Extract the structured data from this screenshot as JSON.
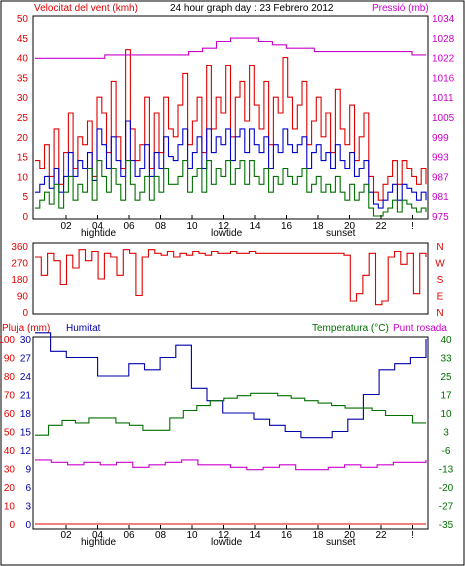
{
  "colors": {
    "wind": "#e00000",
    "wind_avg": "#0000cc",
    "wind_low": "#007000",
    "pressure": "#cc00cc",
    "direction": "#e00000",
    "rain": "#e00000",
    "humidity": "#0000aa",
    "temperature": "#007000",
    "dewpoint": "#cc00cc",
    "frame": "#000000"
  },
  "top": {
    "left_title": "Velocitat del vent (kmh)",
    "center_title": "24 hour graph day : 23 Febrero 2012",
    "right_title": "Pressió (mb)"
  },
  "middle": {
    "compass": [
      "N",
      "W",
      "S",
      "E",
      "N"
    ]
  },
  "bottom": {
    "rain_title": "Pluja (mm)",
    "humidity_title": "Humitat",
    "temp_title": "Temperatura (°C)",
    "dew_title": "Punt rosada"
  },
  "markers": {
    "hightide": "hightide",
    "lowtide": "lowtide",
    "sunset": "sunset"
  },
  "chart_data": [
    {
      "type": "line",
      "x_ticks": [
        "02",
        "04",
        "06",
        "08",
        "10",
        "12",
        "14",
        "16",
        "18",
        "20",
        "22",
        "!"
      ],
      "y_left_ticks": [
        "0",
        "5",
        "10",
        "15",
        "20",
        "25",
        "30",
        "35",
        "40",
        "45",
        "50"
      ],
      "y_left_range": [
        0,
        50
      ],
      "y_right_ticks": [
        "975",
        "981",
        "987",
        "993",
        "999",
        "1005",
        "1011",
        "1016",
        "1022",
        "1028",
        "1034"
      ],
      "y_right_range": [
        975,
        1034
      ],
      "series": [
        {
          "values": [
            14,
            12,
            18,
            10,
            22,
            8,
            16,
            26,
            12,
            20,
            18,
            24,
            10,
            30,
            26,
            16,
            34,
            20,
            12,
            42,
            22,
            14,
            18,
            30,
            12,
            26,
            16,
            30,
            22,
            20,
            28,
            36,
            18,
            24,
            30,
            16,
            38,
            22,
            30,
            26,
            38,
            20,
            30,
            34,
            24,
            38,
            28,
            22,
            34,
            18,
            30,
            26,
            40,
            30,
            22,
            28,
            34,
            18,
            24,
            30,
            20,
            26,
            16,
            32,
            22,
            18,
            28,
            14,
            20,
            26,
            10,
            6,
            4,
            8,
            10,
            14,
            8,
            14,
            12,
            10,
            8,
            12,
            8
          ]
        },
        {
          "values": [
            6,
            8,
            10,
            7,
            12,
            6,
            10,
            16,
            10,
            14,
            12,
            16,
            9,
            22,
            18,
            12,
            20,
            14,
            10,
            24,
            14,
            10,
            12,
            18,
            10,
            16,
            12,
            20,
            15,
            14,
            18,
            22,
            12,
            16,
            20,
            12,
            22,
            16,
            20,
            18,
            22,
            14,
            20,
            22,
            16,
            22,
            18,
            16,
            20,
            12,
            18,
            16,
            22,
            18,
            16,
            18,
            20,
            12,
            16,
            18,
            14,
            16,
            12,
            18,
            14,
            12,
            16,
            10,
            12,
            14,
            6,
            3,
            2,
            4,
            6,
            8,
            4,
            8,
            7,
            6,
            4,
            6,
            4
          ]
        },
        {
          "values": [
            2,
            4,
            6,
            3,
            8,
            2,
            6,
            10,
            4,
            8,
            6,
            12,
            4,
            14,
            10,
            6,
            12,
            8,
            4,
            14,
            8,
            4,
            6,
            10,
            4,
            10,
            6,
            12,
            8,
            8,
            10,
            14,
            6,
            10,
            12,
            6,
            14,
            8,
            12,
            10,
            14,
            8,
            12,
            14,
            8,
            14,
            10,
            8,
            12,
            6,
            10,
            8,
            12,
            10,
            8,
            10,
            12,
            6,
            8,
            10,
            6,
            8,
            6,
            10,
            6,
            4,
            8,
            4,
            6,
            8,
            2,
            0,
            0,
            1,
            2,
            4,
            1,
            4,
            3,
            2,
            1,
            2,
            1
          ]
        },
        {
          "name": "Pressió (mb)",
          "values": [
            1022,
            1022,
            1022,
            1022,
            1022,
            1023,
            1023,
            1023,
            1023,
            1023,
            1023,
            1024,
            1025,
            1027,
            1028,
            1028,
            1027,
            1026,
            1025,
            1025,
            1024,
            1024,
            1024,
            1024,
            1024,
            1024,
            1024,
            1023,
            1023
          ]
        }
      ]
    },
    {
      "type": "line",
      "y_left_ticks": [
        "0",
        "90",
        "180",
        "270",
        "360"
      ],
      "y_range": [
        0,
        360
      ],
      "series": [
        {
          "values": [
            300,
            200,
            320,
            280,
            150,
            310,
            240,
            340,
            280,
            330,
            180,
            320,
            300,
            200,
            340,
            320,
            90,
            300,
            340,
            320,
            310,
            330,
            300,
            320,
            310,
            330,
            320,
            310,
            330,
            320,
            320,
            330,
            320,
            320,
            330,
            320,
            320,
            320,
            320,
            320,
            320,
            320,
            320,
            320,
            320,
            320,
            320,
            320,
            320,
            310,
            60,
            100,
            200,
            320,
            40,
            60,
            300,
            330,
            260,
            320,
            100,
            320,
            300
          ]
        }
      ]
    },
    {
      "type": "line",
      "y_rain_ticks": [
        "0",
        "10",
        "20",
        "30",
        "40",
        "50",
        "60",
        "70",
        "80",
        "90",
        "100"
      ],
      "y_hum_ticks": [
        "0",
        "3",
        "6",
        "9",
        "12",
        "15",
        "18",
        "21",
        "24",
        "27",
        "30"
      ],
      "y_temp_ticks": [
        "-35",
        "-27",
        "-20",
        "-13",
        "-6",
        "3",
        "10",
        "17",
        "25",
        "33",
        "40"
      ],
      "y_temp_range": [
        -35,
        40
      ],
      "series": [
        {
          "values": [
            0,
            0,
            0,
            0,
            0,
            0,
            0,
            0,
            0,
            0,
            0,
            0,
            0
          ]
        },
        {
          "values": [
            31,
            28,
            27,
            27,
            24,
            24,
            26,
            25,
            27,
            29,
            22,
            20,
            18,
            18,
            17,
            16,
            15,
            14,
            14,
            15,
            17,
            21,
            25,
            26,
            27,
            30
          ]
        },
        {
          "name": "Temperatura (°C)",
          "values": [
            1,
            5,
            7,
            6,
            8,
            8,
            6,
            5,
            3,
            3,
            8,
            11,
            13,
            15,
            16,
            17,
            18,
            18,
            17,
            16,
            15,
            14,
            13,
            12,
            12,
            11,
            9,
            9,
            6,
            6
          ]
        },
        {
          "name": "Punt rosada",
          "values": [
            -9,
            -10,
            -11,
            -10,
            -11,
            -10,
            -12,
            -11,
            -10,
            -9,
            -11,
            -11,
            -12,
            -13,
            -12,
            -11,
            -13,
            -13,
            -12,
            -11,
            -12,
            -11,
            -10,
            -10,
            -9
          ]
        }
      ]
    }
  ]
}
